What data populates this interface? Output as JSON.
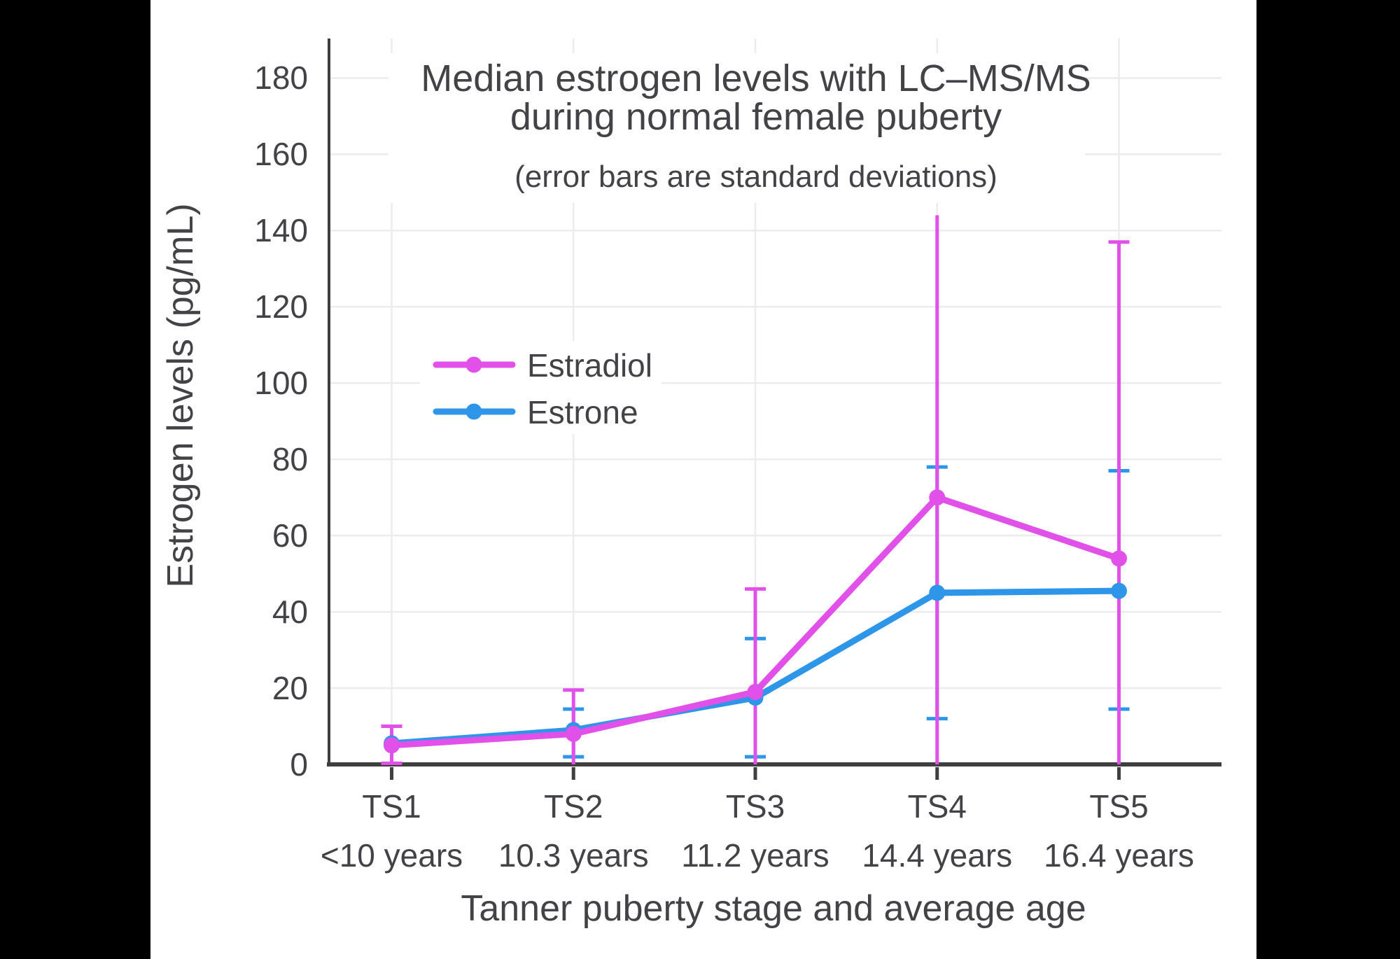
{
  "title": {
    "line1": "Median estrogen levels with LC–MS/MS",
    "line2": "during normal female puberty",
    "subtitle": "(error bars are standard deviations)"
  },
  "legend": [
    {
      "label": "Estradiol",
      "color": "#E150E8"
    },
    {
      "label": "Estrone",
      "color": "#2D96E8"
    }
  ],
  "colors": {
    "estradiol": "#E150E8",
    "estrone": "#2D96E8",
    "axis": "#3F3F3F",
    "gridline": "#ECECEC",
    "panel_bg": "#FFFFFF",
    "letterbox": "#000000",
    "text": "#434347"
  },
  "chart_data": {
    "type": "line",
    "title": "Median estrogen levels with LC–MS/MS during normal female puberty",
    "subtitle": "(error bars are standard deviations)",
    "xlabel": "Tanner puberty stage and average age",
    "ylabel": "Estrogen levels (pg/mL)",
    "categories": [
      "TS1",
      "TS2",
      "TS3",
      "TS4",
      "TS5"
    ],
    "category_sublabels": [
      "<10 years",
      "10.3 years",
      "11.2 years",
      "14.4 years",
      "16.4 years"
    ],
    "y_ticks": [
      0,
      20,
      40,
      60,
      80,
      100,
      120,
      140,
      160,
      180
    ],
    "ylim": [
      0,
      190
    ],
    "grid": true,
    "legend_position": "inside-upper-left",
    "series": [
      {
        "name": "Estrone",
        "color": "#2D96E8",
        "values": [
          5.5,
          9,
          17.5,
          45,
          45.5
        ],
        "error_low": [
          null,
          2,
          2,
          12,
          14.5
        ],
        "error_high": [
          null,
          14.5,
          33,
          78,
          77
        ],
        "cap_top": [
          false,
          true,
          true,
          true,
          true
        ],
        "cap_bottom": [
          false,
          true,
          true,
          true,
          true
        ]
      },
      {
        "name": "Estradiol",
        "color": "#E150E8",
        "values": [
          5,
          8,
          19,
          70,
          54
        ],
        "error_low": [
          0.3,
          0,
          0,
          0,
          0
        ],
        "error_high": [
          10,
          19.5,
          46,
          144,
          137
        ],
        "cap_top": [
          true,
          true,
          true,
          false,
          true
        ],
        "cap_bottom": [
          true,
          false,
          false,
          false,
          false
        ]
      }
    ]
  }
}
